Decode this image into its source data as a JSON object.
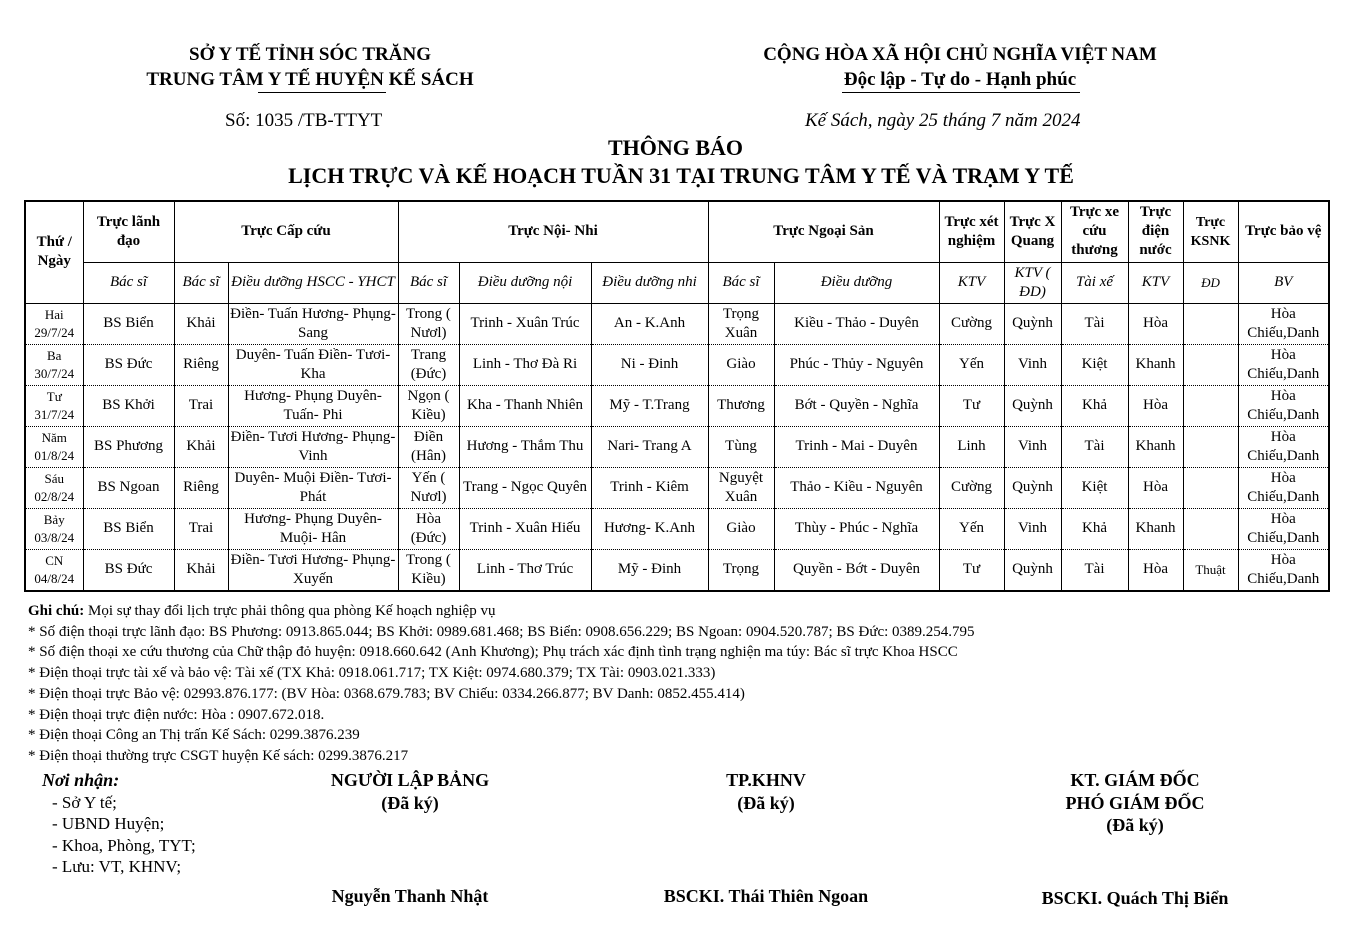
{
  "header": {
    "left_line1": "SỞ Y TẾ TỈNH SÓC TRĂNG",
    "left_line2": "TRUNG TÂM Y TẾ HUYỆN KẾ SÁCH",
    "number": "Số:  1035 /TB-TTYT",
    "right_line1": "CỘNG HÒA XÃ HỘI CHỦ NGHĨA VIỆT NAM",
    "right_line2": "Độc lập - Tự do - Hạnh phúc",
    "date": "Kế Sách, ngày  25  tháng   7  năm 2024"
  },
  "title": "THÔNG BÁO",
  "subtitle": "LỊCH TRỰC VÀ KẾ HOẠCH TUẦN 31 TẠI TRUNG TÂM Y TẾ VÀ TRẠM Y TẾ",
  "table": {
    "group_headers": [
      "Thứ / Ngày",
      "Trực lãnh đạo",
      "Trực Cấp cứu",
      "Trực Nội- Nhi",
      "Trực Ngoại Sản",
      "Trực xét nghiệm",
      "Trực X Quang",
      "Trực xe cứu thương",
      "Trực điện nước",
      "Trực KSNK",
      "Trực bảo vệ"
    ],
    "sub_headers": [
      "Bác sĩ",
      "Bác sĩ",
      "Điều dưỡng HSCC - YHCT",
      "Bác sĩ",
      "Điều dưỡng nội",
      "Điều dưỡng nhi",
      "Bác sĩ",
      "Điều dưỡng",
      "KTV",
      "KTV ( ĐD)",
      "Tài xế",
      "KTV",
      "ĐD",
      "BV"
    ],
    "rows": [
      [
        "Hai 29/7/24",
        "BS Biển",
        "Khải",
        "Điền- Tuấn Hương- Phụng-Sang",
        "Trong ( Nươl)",
        "Trinh - Xuân Trúc",
        "An - K.Anh",
        "Trọng Xuân",
        "Kiều - Thảo - Duyên",
        "Cường",
        "Quỳnh",
        "Tài",
        "Hòa",
        "",
        "Hòa Chiếu,Danh"
      ],
      [
        "Ba 30/7/24",
        "BS Đức",
        "Riêng",
        "Duyên- Tuấn Điền- Tươi- Kha",
        "Trang (Đức)",
        "Linh - Thơ Đà Ri",
        "Ni - Đinh",
        "Giào",
        "Phúc - Thủy - Nguyên",
        "Yến",
        "Vinh",
        "Kiệt",
        "Khanh",
        "",
        "Hòa Chiếu,Danh"
      ],
      [
        "Tư 31/7/24",
        "BS Khởi",
        "Trai",
        "Hương- Phụng Duyên- Tuấn- Phi",
        "Ngọn ( Kiều)",
        "Kha - Thanh Nhiên",
        "Mỹ - T.Trang",
        "Thương",
        "Bớt - Quyền - Nghĩa",
        "Tư",
        "Quỳnh",
        "Khả",
        "Hòa",
        "",
        "Hòa Chiếu,Danh"
      ],
      [
        "Năm 01/8/24",
        "BS Phương",
        "Khải",
        "Điền- Tươi Hương- Phụng- Vinh",
        "Điền (Hân)",
        "Hương - Thắm Thu",
        "Nari- Trang A",
        "Tùng",
        "Trinh - Mai - Duyên",
        "Linh",
        "Vinh",
        "Tài",
        "Khanh",
        "",
        "Hòa Chiếu,Danh"
      ],
      [
        "Sáu 02/8/24",
        "BS Ngoan",
        "Riêng",
        "Duyên- Muội Điền- Tươi- Phát",
        "Yến ( Nươl)",
        "Trang - Ngọc Quyên",
        "Trinh - Kiêm",
        "Nguyệt Xuân",
        "Thảo - Kiều - Nguyên",
        "Cường",
        "Quỳnh",
        "Kiệt",
        "Hòa",
        "",
        "Hòa Chiếu,Danh"
      ],
      [
        "Bảy 03/8/24",
        "BS Biển",
        "Trai",
        "Hương- Phụng Duyên- Muội- Hân",
        "Hòa (Đức)",
        "Trinh - Xuân Hiếu",
        "Hương- K.Anh",
        "Giào",
        "Thùy - Phúc - Nghĩa",
        "Yến",
        "Vinh",
        "Khả",
        "Khanh",
        "",
        "Hòa Chiếu,Danh"
      ],
      [
        "CN 04/8/24",
        "BS Đức",
        "Khải",
        "Điền- Tươi Hương- Phụng- Xuyến",
        "Trong ( Kiều)",
        "Linh - Thơ Trúc",
        "Mỹ - Đinh",
        "Trọng",
        "Quyền - Bớt - Duyên",
        "Tư",
        "Quỳnh",
        "Tài",
        "Hòa",
        "Thuật",
        "Hòa Chiếu,Danh"
      ]
    ]
  },
  "notes": {
    "label": "Ghi chú:",
    "main": " Mọi sự thay đổi lịch trực phải thông qua phòng Kế hoạch nghiệp vụ",
    "lines": [
      "* Số điện thoại trực lãnh đạo: BS Phương: 0913.865.044; BS Khởi:   0989.681.468; BS Biển: 0908.656.229; BS Ngoan: 0904.520.787; BS Đức: 0389.254.795",
      "* Số điện thoại xe cứu thương của Chữ thập đỏ huyện: 0918.660.642 (Anh Khương); Phụ trách xác định tình trạng nghiện ma túy: Bác sĩ trực Khoa HSCC",
      "* Điện thoại trực tài xế và bảo vệ: Tài  xế (TX  Khả: 0918.061.717;  TX Kiệt: 0974.680.379; TX Tài: 0903.021.333)",
      "* Điện thoại trực Bảo vệ: 02993.876.177: (BV Hòa: 0368.679.783; BV Chiếu: 0334.266.877; BV  Danh: 0852.455.414)",
      "* Điện thoại trực điện nước: Hòa : 0907.672.018.",
      "* Điện thoại Công an Thị trấn Kế Sách: 0299.3876.239",
      "* Điện thoại thường trực CSGT huyện Kế sách: 0299.3876.217"
    ]
  },
  "recipients": {
    "title": "Nơi nhận:",
    "items": [
      "- Sở Y tế;",
      "- UBND Huyện;",
      "- Khoa, Phòng, TYT;",
      "- Lưu: VT, KHNV;"
    ]
  },
  "signatures": [
    {
      "role": "NGƯỜI LẬP BẢNG",
      "status": "(Đã ký)",
      "name": "Nguyễn Thanh Nhật"
    },
    {
      "role": "TP.KHNV",
      "status": "(Đã ký)",
      "name": "BSCKI. Thái Thiên Ngoan"
    },
    {
      "role": "KT. GIÁM ĐỐC",
      "role2": "PHÓ GIÁM ĐỐC",
      "status": "(Đã ký)",
      "name": "BSCKI. Quách Thị Biển"
    }
  ]
}
